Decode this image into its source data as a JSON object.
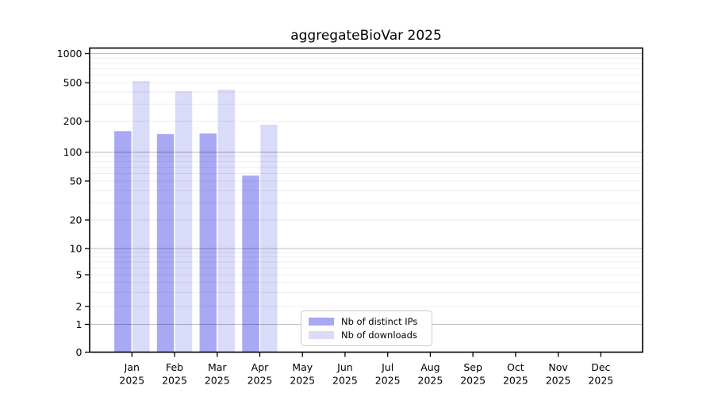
{
  "chart_data": {
    "type": "bar",
    "title": "aggregateBioVar 2025",
    "categories": [
      "Jan",
      "Feb",
      "Mar",
      "Apr",
      "May",
      "Jun",
      "Jul",
      "Aug",
      "Sep",
      "Oct",
      "Nov",
      "Dec"
    ],
    "category_year": "2025",
    "series": [
      {
        "name": "Nb of distinct IPs",
        "color": "#a8a8f4",
        "values": [
          160,
          150,
          152,
          57,
          0,
          0,
          0,
          0,
          0,
          0,
          0,
          0
        ]
      },
      {
        "name": "Nb of downloads",
        "color": "#dadaf9",
        "values": [
          520,
          410,
          425,
          185,
          0,
          0,
          0,
          0,
          0,
          0,
          0,
          0
        ]
      }
    ],
    "y_ticks": [
      0,
      1,
      2,
      5,
      10,
      20,
      50,
      100,
      200,
      500,
      1000
    ],
    "y_scale": "symlog",
    "ylim": [
      0,
      1000
    ],
    "grid": true,
    "grid_major_decades": [
      1,
      10,
      100,
      1000
    ],
    "legend_position": "inside-bottom-center",
    "colors": {
      "axis": "#000000",
      "grid_major": "rgba(0,0,0,0.25)",
      "grid_minor": "rgba(0,0,0,0.07)",
      "text": "#000000",
      "background": "#ffffff"
    }
  }
}
